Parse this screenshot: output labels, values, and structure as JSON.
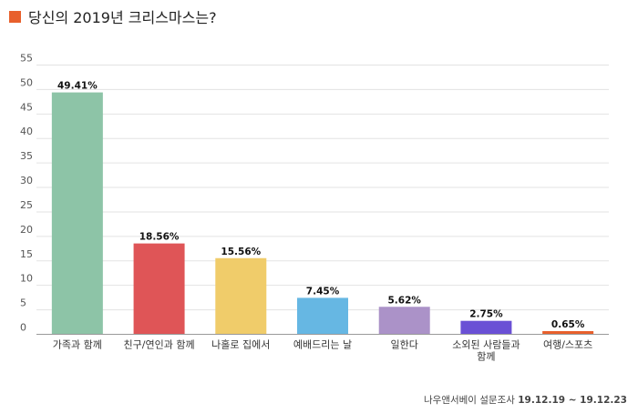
{
  "header": {
    "title": "당신의 2019년 크리스마스는?",
    "accent_color": "#e8602c"
  },
  "footer": {
    "source": "나우앤서베이 설문조사",
    "dates": "19.12.19 ~ 19.12.23"
  },
  "chart_data": {
    "type": "bar",
    "title": "당신의 2019년 크리스마스는?",
    "categories": [
      [
        "가족과 함께"
      ],
      [
        "친구/연인과 함께"
      ],
      [
        "나홀로 집에서"
      ],
      [
        "예배드리는 날"
      ],
      [
        "일한다"
      ],
      [
        "소외된 사람들과",
        "함께"
      ],
      [
        "여행/스포츠"
      ]
    ],
    "values": [
      49.41,
      18.56,
      15.56,
      7.45,
      5.62,
      2.75,
      0.65
    ],
    "value_labels": [
      "49.41%",
      "18.56%",
      "15.56%",
      "7.45%",
      "5.62%",
      "2.75%",
      "0.65%"
    ],
    "colors": [
      "#8dc4a7",
      "#df5557",
      "#f0cc6a",
      "#66b7e3",
      "#ab92c8",
      "#6a50d5",
      "#e8602c"
    ],
    "yticks": [
      0,
      5,
      10,
      15,
      20,
      25,
      30,
      35,
      40,
      45,
      50,
      55
    ],
    "ylim": [
      0,
      55
    ],
    "grid": true,
    "legend": "none"
  }
}
